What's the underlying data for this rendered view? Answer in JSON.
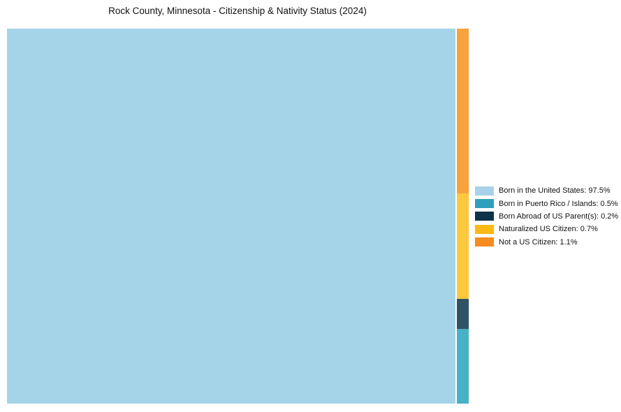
{
  "title": "Rock County, Minnesota - Citizenship & Nativity Status (2024)",
  "chart_data": {
    "type": "treemap",
    "title": "Rock County, Minnesota - Citizenship & Nativity Status (2024)",
    "unit": "%",
    "total_percent": 100,
    "items": [
      {
        "id": "born-in-us",
        "label": "Born in the United States",
        "value": 97.5,
        "legend_label": "Born in the United States: 97.5%",
        "legend_color": "#a8d2e8",
        "fill_color": "#a5d4e9"
      },
      {
        "id": "born-puerto-rico-islands",
        "label": "Born in Puerto Rico / Islands",
        "value": 0.5,
        "legend_label": "Born in Puerto Rico / Islands: 0.5%",
        "legend_color": "#2f9fbe",
        "fill_color": "#47b1c6"
      },
      {
        "id": "born-abroad-us-parents",
        "label": "Born Abroad of US Parent(s)",
        "value": 0.2,
        "legend_label": "Born Abroad of US Parent(s): 0.2%",
        "legend_color": "#0d3449",
        "fill_color": "#2e5365"
      },
      {
        "id": "naturalized-us-citizen",
        "label": "Naturalized US Citizen",
        "value": 0.7,
        "legend_label": "Naturalized US Citizen: 0.7%",
        "legend_color": "#fdb913",
        "fill_color": "#fdc73e"
      },
      {
        "id": "not-us-citizen",
        "label": "Not a US Citizen",
        "value": 1.1,
        "legend_label": "Not a US Citizen: 1.1%",
        "legend_color": "#f68b1f",
        "fill_color": "#f9a13d"
      }
    ],
    "layout": {
      "main_item_index": 0,
      "strip_order_top_to_bottom": [
        4,
        3,
        2,
        1
      ],
      "legend_position": "right-center",
      "legend_order": [
        0,
        1,
        2,
        3,
        4
      ],
      "grid": false
    }
  }
}
